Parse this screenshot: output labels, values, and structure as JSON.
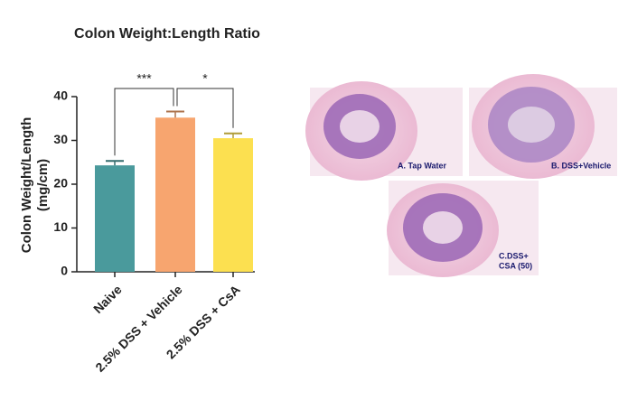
{
  "chart_data": {
    "type": "bar",
    "title": "Colon Weight:Length Ratio",
    "ylabel": [
      "Colon Weight/Length",
      "(mg/cm)"
    ],
    "categories": [
      "Naive",
      "2.5% DSS + Vehicle",
      "2.5% DSS + CsA"
    ],
    "values": [
      24.3,
      35.2,
      30.5
    ],
    "errors": [
      1.0,
      1.4,
      1.1
    ],
    "colors": [
      "#4a9a9c",
      "#f7a56f",
      "#fce050"
    ],
    "ylim": [
      0,
      40
    ],
    "yticks": [
      0,
      10,
      20,
      30,
      40
    ],
    "comparisons": [
      {
        "label": "***",
        "between": [
          "Naive",
          "2.5% DSS + Vehicle"
        ]
      },
      {
        "label": "*",
        "between": [
          "2.5% DSS + Vehicle",
          "2.5% DSS + CsA"
        ]
      }
    ]
  },
  "images": [
    {
      "label": "A. Tap Water"
    },
    {
      "label": "B. DSS+Vehicle"
    },
    {
      "label": [
        "C.DSS+",
        "CSA (50)"
      ]
    }
  ]
}
